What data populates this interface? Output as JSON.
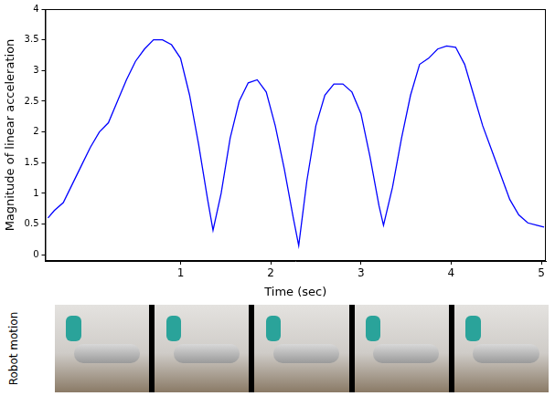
{
  "chart_data": {
    "type": "line",
    "x_label": "Time (sec)",
    "y_label": "Magnitude of linear acceleration",
    "color": "#0000ff",
    "grid": false,
    "xlim": [
      -0.5,
      5.05
    ],
    "xticks": [
      1,
      2,
      3,
      4,
      5
    ],
    "ylim": [
      -0.1,
      4
    ],
    "yticks": [
      0,
      0.5,
      1,
      1.5,
      2,
      2.5,
      3,
      3.5,
      4
    ],
    "x": [
      -0.47,
      -0.4,
      -0.3,
      -0.2,
      -0.1,
      0.0,
      0.1,
      0.2,
      0.3,
      0.4,
      0.5,
      0.6,
      0.7,
      0.8,
      0.9,
      1.0,
      1.1,
      1.2,
      1.3,
      1.36,
      1.45,
      1.55,
      1.65,
      1.75,
      1.85,
      1.95,
      2.05,
      2.15,
      2.25,
      2.31,
      2.4,
      2.5,
      2.6,
      2.7,
      2.8,
      2.9,
      3.0,
      3.1,
      3.2,
      3.25,
      3.35,
      3.45,
      3.55,
      3.65,
      3.75,
      3.85,
      3.95,
      4.05,
      4.15,
      4.25,
      4.35,
      4.45,
      4.55,
      4.65,
      4.75,
      4.85,
      4.95,
      5.03
    ],
    "values": [
      0.6,
      0.72,
      0.85,
      1.15,
      1.45,
      1.75,
      2.0,
      2.15,
      2.5,
      2.85,
      3.15,
      3.35,
      3.5,
      3.5,
      3.42,
      3.2,
      2.6,
      1.8,
      0.9,
      0.4,
      1.0,
      1.9,
      2.5,
      2.8,
      2.85,
      2.65,
      2.1,
      1.4,
      0.6,
      0.15,
      1.2,
      2.1,
      2.6,
      2.78,
      2.78,
      2.65,
      2.3,
      1.6,
      0.8,
      0.48,
      1.1,
      1.9,
      2.6,
      3.1,
      3.2,
      3.35,
      3.4,
      3.38,
      3.1,
      2.6,
      2.1,
      1.7,
      1.3,
      0.9,
      0.65,
      0.52,
      0.48,
      0.45
    ]
  },
  "image_strip": {
    "label": "Robot motion",
    "frames": 5
  }
}
